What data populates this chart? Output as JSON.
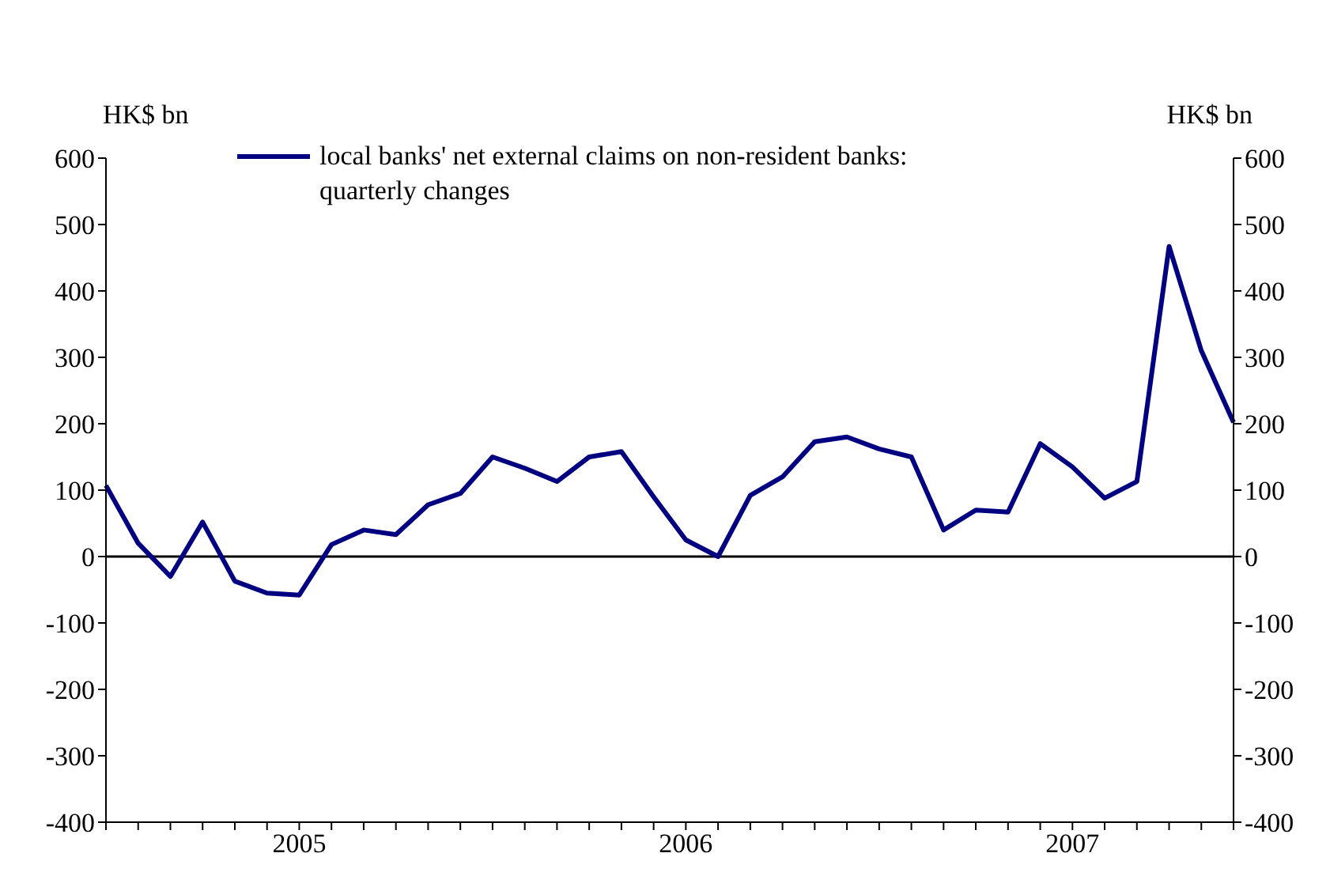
{
  "chart_data": {
    "type": "line",
    "ylabel": "HK$ bn",
    "y2label": "HK$ bn",
    "categories": [
      null,
      null,
      null,
      null,
      null,
      null,
      "2005",
      null,
      null,
      null,
      null,
      null,
      null,
      null,
      null,
      null,
      null,
      null,
      "2006",
      null,
      null,
      null,
      null,
      null,
      null,
      null,
      null,
      null,
      null,
      null,
      "2007",
      null,
      null,
      null,
      null,
      null
    ],
    "series": [
      {
        "name": "local banks' net external claims on non-resident banks: quarterly changes",
        "color": "#000080",
        "values": [
          107,
          20,
          -30,
          52,
          -37,
          -55,
          -58,
          18,
          40,
          33,
          78,
          95,
          150,
          133,
          113,
          150,
          158,
          90,
          25,
          0,
          92,
          120,
          173,
          180,
          162,
          150,
          40,
          70,
          67,
          170,
          135,
          88,
          113,
          467,
          310,
          202
        ]
      }
    ],
    "ylim": [
      -400,
      600
    ],
    "yticks": [
      -400,
      -300,
      -200,
      -100,
      0,
      100,
      200,
      300,
      400,
      500,
      600
    ],
    "y2lim": [
      -400,
      600
    ],
    "y2ticks": [
      -400,
      -300,
      -200,
      -100,
      0,
      100,
      200,
      300,
      400,
      500,
      600
    ],
    "ref_lines": [
      {
        "axis": "y",
        "value": 0,
        "color": "#000000"
      }
    ],
    "grid": false,
    "legend": "top",
    "marker": "none",
    "line_style": "solid"
  }
}
